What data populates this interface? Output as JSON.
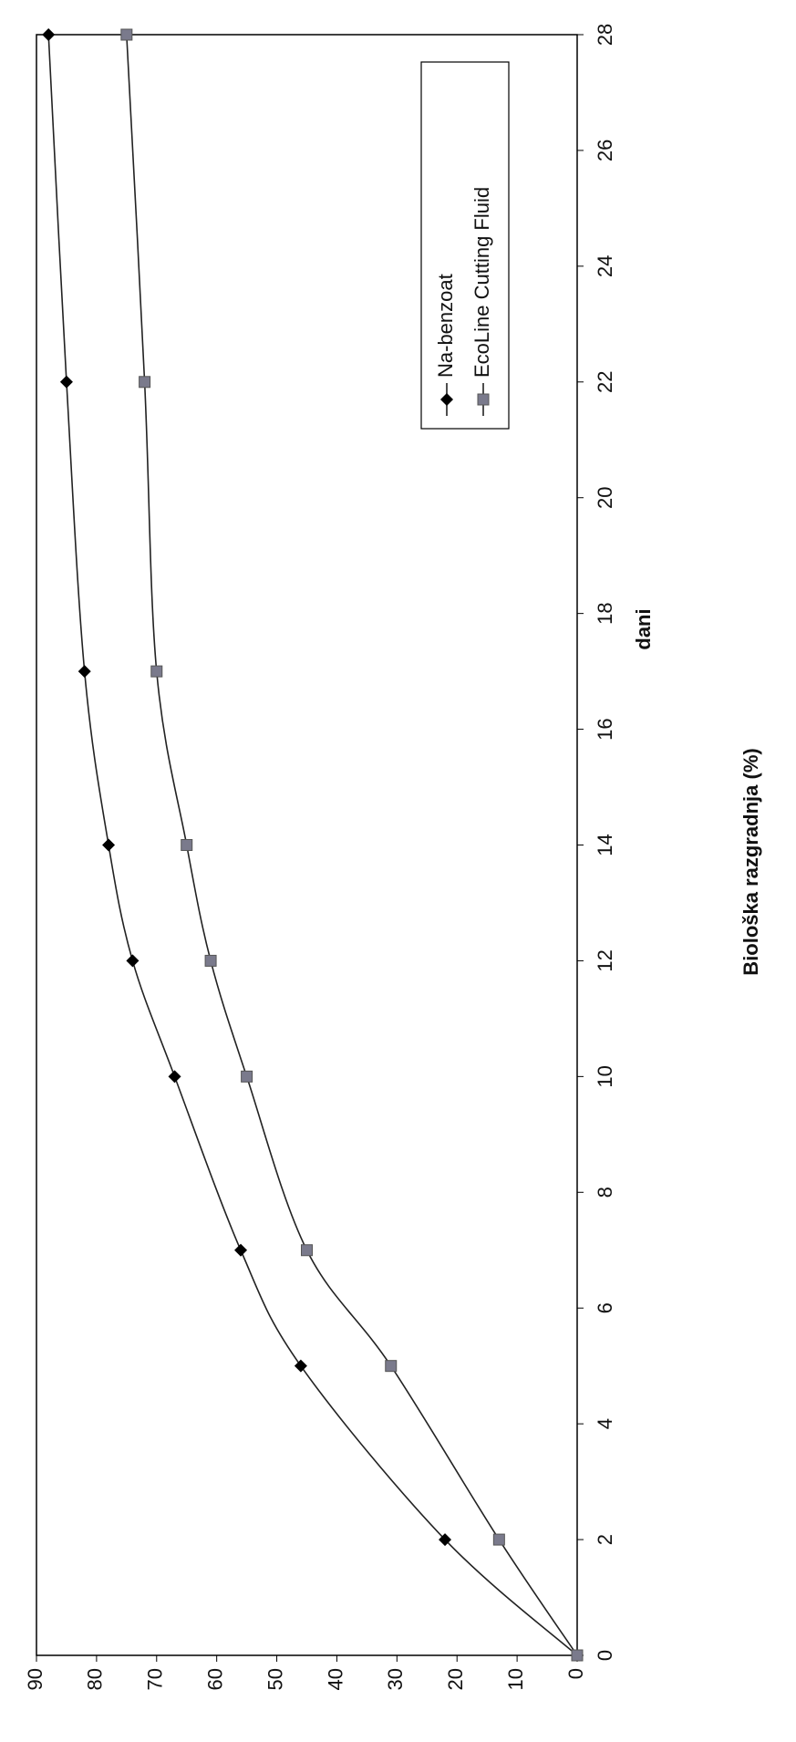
{
  "chart_data": {
    "type": "line",
    "x_label": "dani",
    "y_label": "Biološka razgradnja (%)",
    "x": [
      0,
      2,
      5,
      7,
      10,
      12,
      14,
      17,
      22,
      28
    ],
    "series": [
      {
        "name": "Na-benzoat",
        "color": "#000000",
        "marker": "diamond",
        "values": [
          0,
          22,
          46,
          56,
          67,
          74,
          78,
          82,
          85,
          88
        ]
      },
      {
        "name": "EcoLine Cutting Fluid",
        "color": "#7a7a8c",
        "marker": "square",
        "values": [
          0,
          13,
          31,
          45,
          55,
          61,
          65,
          70,
          72,
          75
        ]
      }
    ],
    "xlim": [
      0,
      28
    ],
    "xticks": [
      0,
      2,
      4,
      6,
      8,
      10,
      12,
      14,
      16,
      18,
      20,
      22,
      24,
      26,
      28
    ],
    "ylim": [
      0,
      90
    ],
    "yticks": [
      0,
      10,
      20,
      30,
      40,
      50,
      60,
      70,
      80,
      90
    ],
    "grid": false,
    "legend": "upper right"
  }
}
